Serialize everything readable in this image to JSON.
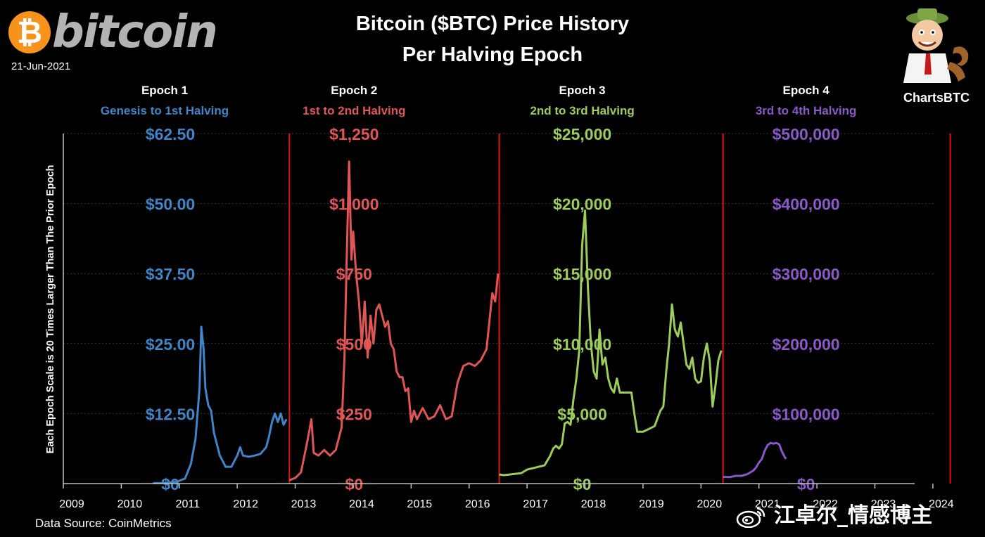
{
  "header": {
    "logo_symbol": "₿",
    "logo_word": "bitcoin",
    "date": "21-Jun-2021",
    "title_line1": "Bitcoin ($BTC) Price History",
    "title_line2": "Per Halving Epoch",
    "brand": "ChartsBTC",
    "brand_icon": "cartoon-mascot-icon"
  },
  "footer": {
    "source": "Data Source: CoinMetrics",
    "watermark": "江卓尔_情感博主",
    "watermark_icon": "weibo-icon"
  },
  "colors": {
    "background": "#000000",
    "grid": "#3a3a3a",
    "divider": "#e01414",
    "epoch1": "#3f85c8",
    "epoch2": "#e05555",
    "epoch3": "#9ccc5a",
    "epoch4": "#8a58c8"
  },
  "chart_data": {
    "type": "line",
    "title": "Bitcoin ($BTC) Price History Per Halving Epoch",
    "ylabel": "Each Epoch Scale is 20 Times Larger Than The Prior Epoch",
    "xlabel": "",
    "x_ticks": [
      "2009",
      "2010",
      "2011",
      "2012",
      "2013",
      "2014",
      "2015",
      "2016",
      "2017",
      "2018",
      "2019",
      "2020",
      "2021",
      "2022",
      "2023",
      "2024"
    ],
    "x_range": [
      2009,
      2024.05
    ],
    "grid": true,
    "epochs": [
      {
        "name": "Epoch 1",
        "subtitle": "Genesis to 1st Halving",
        "color": "#3f85c8",
        "start": 2009,
        "end": 2012.9,
        "y_ticks": [
          "$0",
          "$12.50",
          "$25.00",
          "$37.50",
          "$50.00",
          "$62.50"
        ],
        "ylim": [
          0,
          62.5
        ],
        "x": [
          2010.55,
          2010.75,
          2010.95,
          2011.1,
          2011.2,
          2011.28,
          2011.35,
          2011.38,
          2011.42,
          2011.45,
          2011.5,
          2011.55,
          2011.6,
          2011.7,
          2011.8,
          2011.9,
          2012.0,
          2012.05,
          2012.1,
          2012.2,
          2012.3,
          2012.4,
          2012.5,
          2012.55,
          2012.6,
          2012.65,
          2012.7,
          2012.75,
          2012.8,
          2012.85
        ],
        "y": [
          0.07,
          0.1,
          0.3,
          0.9,
          3.5,
          8,
          17,
          28,
          24,
          17,
          14,
          13,
          9,
          5,
          3,
          3,
          5,
          6.5,
          5,
          4.8,
          5,
          5.3,
          6.5,
          8.5,
          11,
          12.5,
          11,
          12.5,
          10.5,
          11.5
        ]
      },
      {
        "name": "Epoch 2",
        "subtitle": "1st to 2nd Halving",
        "color": "#e05555",
        "start": 2012.9,
        "end": 2016.52,
        "y_ticks": [
          "$0",
          "$250",
          "$500",
          "$750",
          "$1,000",
          "$1,250"
        ],
        "ylim": [
          0,
          1250
        ],
        "x": [
          2012.9,
          2013.0,
          2013.1,
          2013.2,
          2013.28,
          2013.32,
          2013.4,
          2013.5,
          2013.6,
          2013.7,
          2013.8,
          2013.85,
          2013.9,
          2013.93,
          2013.97,
          2014.0,
          2014.05,
          2014.1,
          2014.15,
          2014.2,
          2014.25,
          2014.3,
          2014.35,
          2014.4,
          2014.45,
          2014.5,
          2014.55,
          2014.6,
          2014.65,
          2014.7,
          2014.75,
          2014.8,
          2014.85,
          2014.9,
          2014.95,
          2015.0,
          2015.05,
          2015.1,
          2015.2,
          2015.3,
          2015.4,
          2015.5,
          2015.6,
          2015.7,
          2015.8,
          2015.9,
          2016.0,
          2016.1,
          2016.2,
          2016.3,
          2016.4,
          2016.45,
          2016.5
        ],
        "y": [
          12,
          20,
          40,
          140,
          230,
          110,
          100,
          120,
          100,
          120,
          200,
          450,
          900,
          1150,
          800,
          900,
          750,
          650,
          500,
          650,
          450,
          600,
          500,
          620,
          640,
          600,
          560,
          580,
          500,
          480,
          400,
          380,
          380,
          330,
          340,
          220,
          260,
          230,
          270,
          230,
          240,
          280,
          230,
          240,
          360,
          420,
          430,
          420,
          440,
          480,
          680,
          650,
          750
        ]
      },
      {
        "name": "Epoch 3",
        "subtitle": "2nd to 3rd Halving",
        "color": "#9ccc5a",
        "start": 2016.52,
        "end": 2020.38,
        "y_ticks": [
          "$0",
          "$5,000",
          "$10,000",
          "$15,000",
          "$20,000",
          "$25,000"
        ],
        "ylim": [
          0,
          25000
        ],
        "x": [
          2016.52,
          2016.6,
          2016.7,
          2016.8,
          2016.9,
          2017.0,
          2017.1,
          2017.2,
          2017.3,
          2017.4,
          2017.45,
          2017.5,
          2017.55,
          2017.6,
          2017.65,
          2017.7,
          2017.75,
          2017.8,
          2017.85,
          2017.9,
          2017.95,
          2018.0,
          2018.05,
          2018.1,
          2018.15,
          2018.2,
          2018.25,
          2018.3,
          2018.35,
          2018.4,
          2018.45,
          2018.5,
          2018.55,
          2018.6,
          2018.7,
          2018.8,
          2018.85,
          2018.9,
          2019.0,
          2019.1,
          2019.2,
          2019.3,
          2019.35,
          2019.4,
          2019.45,
          2019.5,
          2019.55,
          2019.6,
          2019.65,
          2019.7,
          2019.75,
          2019.8,
          2019.85,
          2019.9,
          2019.95,
          2020.0,
          2020.05,
          2020.1,
          2020.15,
          2020.2,
          2020.25,
          2020.3,
          2020.35
        ],
        "y": [
          650,
          600,
          650,
          700,
          750,
          1000,
          1100,
          1200,
          1300,
          2000,
          2500,
          2700,
          2500,
          2800,
          4300,
          4400,
          4200,
          6000,
          7500,
          9500,
          17000,
          19500,
          14000,
          10000,
          8000,
          7500,
          11000,
          8500,
          9000,
          7500,
          6800,
          6500,
          7500,
          6500,
          6500,
          6500,
          5000,
          3700,
          3700,
          3900,
          4100,
          5200,
          5500,
          8000,
          10000,
          12800,
          11000,
          10500,
          11500,
          10000,
          8500,
          8200,
          9000,
          7500,
          7200,
          7300,
          9000,
          10000,
          8800,
          5500,
          7000,
          8800,
          9500
        ]
      },
      {
        "name": "Epoch 4",
        "subtitle": "3rd to 4th Halving",
        "color": "#8a58c8",
        "start": 2020.38,
        "end": 2024.3,
        "y_ticks": [
          "$0",
          "$100,000",
          "$200,000",
          "$300,000",
          "$400,000",
          "$500,000"
        ],
        "ylim": [
          0,
          500000
        ],
        "x": [
          2020.38,
          2020.5,
          2020.6,
          2020.7,
          2020.8,
          2020.9,
          2020.95,
          2021.0,
          2021.05,
          2021.1,
          2021.15,
          2021.2,
          2021.25,
          2021.3,
          2021.35,
          2021.4,
          2021.45,
          2021.47
        ],
        "y": [
          9500,
          9300,
          11000,
          11000,
          13500,
          18500,
          23000,
          30000,
          35000,
          47000,
          55000,
          58000,
          57000,
          58000,
          56000,
          45000,
          37000,
          35500
        ]
      }
    ]
  }
}
